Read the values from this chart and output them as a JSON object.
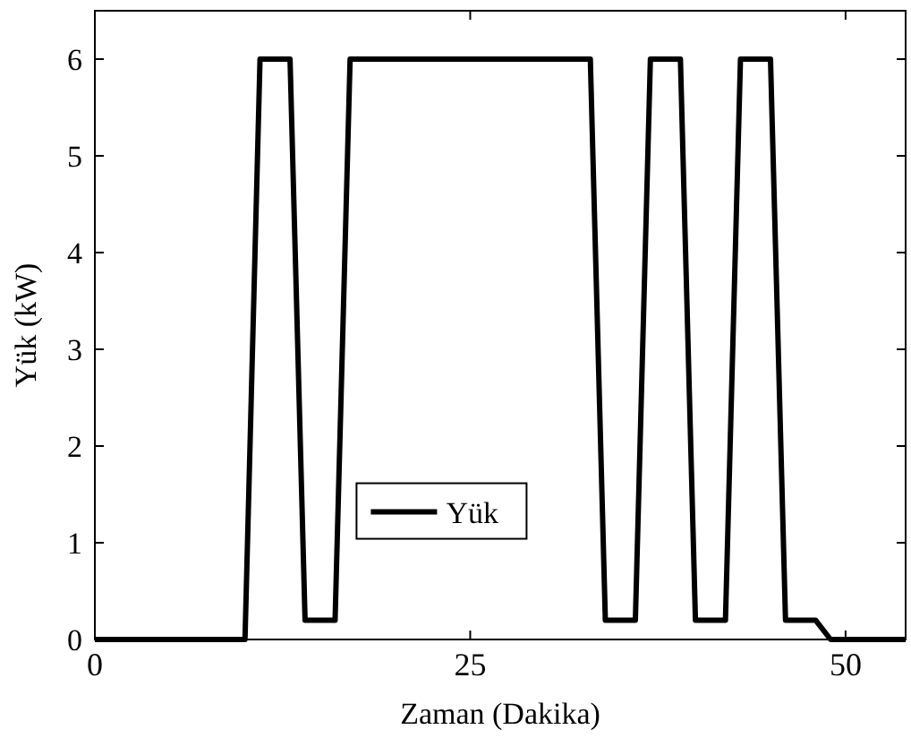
{
  "chart_data": {
    "type": "line",
    "xlabel": "Zaman (Dakika)",
    "ylabel": "Yük (kW)",
    "x": [
      0,
      10,
      11,
      13,
      14,
      16,
      17,
      33,
      34,
      36,
      37,
      39,
      40,
      42,
      43,
      45,
      46,
      48,
      49,
      54
    ],
    "series": [
      {
        "name": "Yük",
        "color": "#000000",
        "values": [
          0,
          0,
          6,
          6,
          0.2,
          0.2,
          6,
          6,
          0.2,
          0.2,
          6,
          6,
          0.2,
          0.2,
          6,
          6,
          0.2,
          0.2,
          0,
          0
        ]
      }
    ],
    "xlim": [
      0,
      54
    ],
    "ylim": [
      0,
      6.5
    ],
    "xticks": [
      0,
      25,
      50
    ],
    "yticks": [
      0,
      1,
      2,
      3,
      4,
      5,
      6
    ],
    "grid": false,
    "legend": "bottom",
    "marker": "none",
    "line_style": "solid"
  }
}
